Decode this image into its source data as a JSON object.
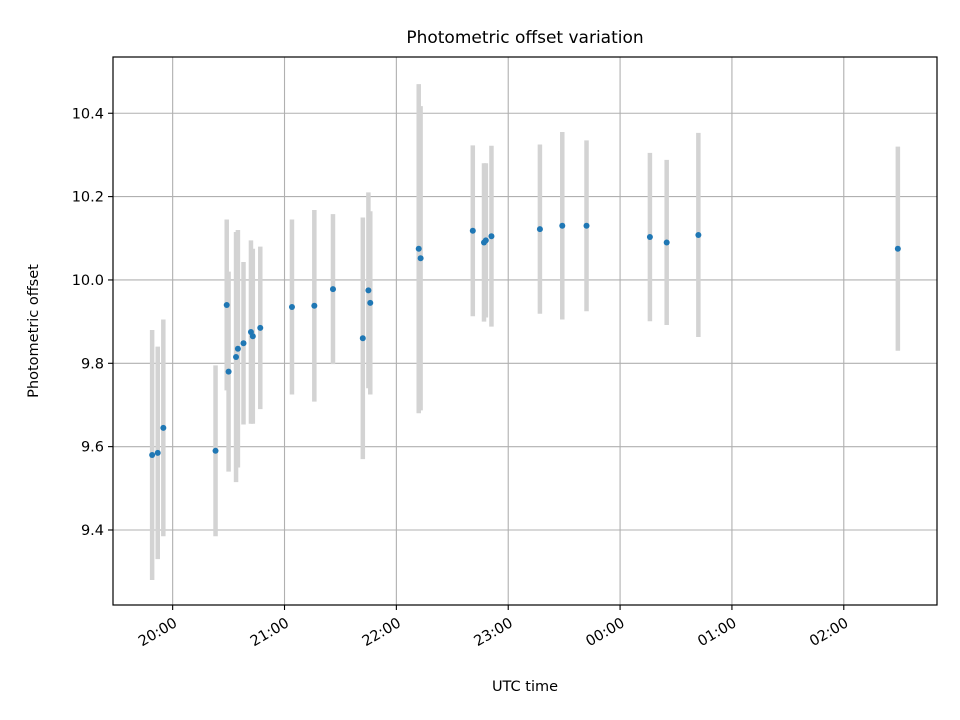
{
  "chart_data": {
    "type": "scatter",
    "title": "Photometric offset variation",
    "xlabel": "UTC time",
    "ylabel": "Photometric offset",
    "x_axis_type": "time",
    "xlim": [
      "19:28",
      "02:50"
    ],
    "ylim": [
      9.22,
      10.535
    ],
    "xticks": [
      "20:00",
      "21:00",
      "22:00",
      "23:00",
      "00:00",
      "01:00",
      "02:00"
    ],
    "yticks": [
      9.4,
      9.6,
      9.8,
      10.0,
      10.2,
      10.4
    ],
    "ytick_labels": [
      "9.4",
      "9.6",
      "9.8",
      "10.0",
      "10.2",
      "10.4"
    ],
    "grid": true,
    "point_color": "#1f77b4",
    "errorbar_color": "#d3d3d3",
    "points": [
      {
        "x": "19:49",
        "y": 9.58,
        "yerr": 0.3
      },
      {
        "x": "19:52",
        "y": 9.585,
        "yerr": 0.255
      },
      {
        "x": "19:55",
        "y": 9.645,
        "yerr": 0.26
      },
      {
        "x": "20:23",
        "y": 9.59,
        "yerr": 0.205
      },
      {
        "x": "20:29",
        "y": 9.94,
        "yerr": 0.205
      },
      {
        "x": "20:30",
        "y": 9.78,
        "yerr": 0.24
      },
      {
        "x": "20:34",
        "y": 9.815,
        "yerr": 0.3
      },
      {
        "x": "20:35",
        "y": 9.835,
        "yerr": 0.285
      },
      {
        "x": "20:38",
        "y": 9.848,
        "yerr": 0.195
      },
      {
        "x": "20:42",
        "y": 9.875,
        "yerr": 0.22
      },
      {
        "x": "20:43",
        "y": 9.865,
        "yerr": 0.21
      },
      {
        "x": "20:47",
        "y": 9.885,
        "yerr": 0.195
      },
      {
        "x": "21:04",
        "y": 9.935,
        "yerr": 0.21
      },
      {
        "x": "21:16",
        "y": 9.938,
        "yerr": 0.23
      },
      {
        "x": "21:26",
        "y": 9.978,
        "yerr": 0.18
      },
      {
        "x": "21:42",
        "y": 9.86,
        "yerr": 0.29
      },
      {
        "x": "21:45",
        "y": 9.975,
        "yerr": 0.235
      },
      {
        "x": "21:46",
        "y": 9.945,
        "yerr": 0.22
      },
      {
        "x": "22:12",
        "y": 10.075,
        "yerr": 0.395
      },
      {
        "x": "22:13",
        "y": 10.052,
        "yerr": 0.365
      },
      {
        "x": "22:41",
        "y": 10.118,
        "yerr": 0.205
      },
      {
        "x": "22:47",
        "y": 10.09,
        "yerr": 0.19
      },
      {
        "x": "22:48",
        "y": 10.095,
        "yerr": 0.185
      },
      {
        "x": "22:51",
        "y": 10.105,
        "yerr": 0.217
      },
      {
        "x": "23:17",
        "y": 10.122,
        "yerr": 0.203
      },
      {
        "x": "23:29",
        "y": 10.13,
        "yerr": 0.225
      },
      {
        "x": "23:42",
        "y": 10.13,
        "yerr": 0.205
      },
      {
        "x": "00:16",
        "y": 10.103,
        "yerr": 0.202
      },
      {
        "x": "00:25",
        "y": 10.09,
        "yerr": 0.198
      },
      {
        "x": "00:42",
        "y": 10.108,
        "yerr": 0.245
      },
      {
        "x": "02:29",
        "y": 10.075,
        "yerr": 0.245
      }
    ]
  }
}
